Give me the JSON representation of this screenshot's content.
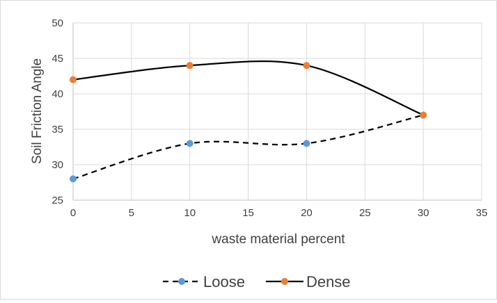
{
  "chart_data": {
    "type": "line",
    "title": "",
    "xlabel": "waste material percent",
    "ylabel": "Soil Friction Angle",
    "xlim": [
      0,
      35
    ],
    "ylim": [
      25,
      50
    ],
    "x_ticks": [
      0,
      5,
      10,
      15,
      20,
      25,
      30,
      35
    ],
    "y_ticks": [
      25,
      30,
      35,
      40,
      45,
      50
    ],
    "grid": true,
    "legend_position": "bottom",
    "smooth": true,
    "series": [
      {
        "name": "Loose",
        "x": [
          0,
          10,
          20,
          30
        ],
        "y": [
          28,
          33,
          33,
          37
        ],
        "line_color": "#000000",
        "line_style": "dashed",
        "marker_color": "#5b9bd5"
      },
      {
        "name": "Dense",
        "x": [
          0,
          10,
          20,
          30
        ],
        "y": [
          42,
          44,
          44,
          37
        ],
        "line_color": "#000000",
        "line_style": "solid",
        "marker_color": "#ed7d31"
      }
    ]
  }
}
